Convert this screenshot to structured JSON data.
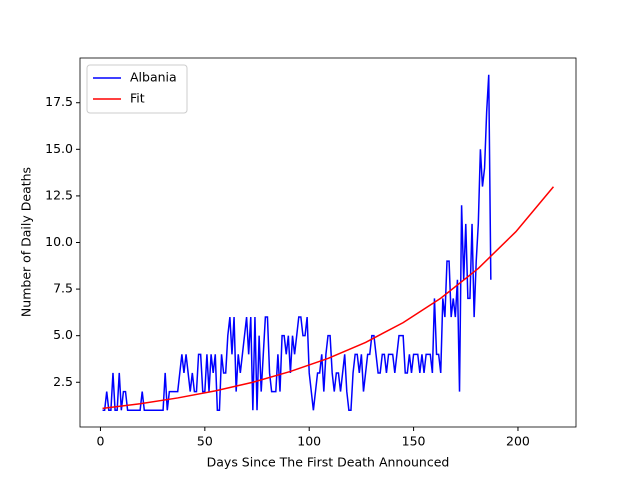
{
  "chart_data": {
    "type": "line",
    "xlabel": "Days Since The First Death Announced",
    "ylabel": "Number of Daily Deaths",
    "xlim": [
      -9.8,
      227.8
    ],
    "xticks": [
      0,
      50,
      100,
      150,
      200
    ],
    "ylim": [
      0.1,
      19.9
    ],
    "yticks": [
      2.5,
      {
        "value": 5,
        "label": "5.0"
      },
      7.5,
      {
        "value": 10,
        "label": "10.0"
      },
      12.5,
      {
        "value": 15,
        "label": "15.0"
      },
      17.5
    ],
    "legend": "upper left",
    "series": [
      {
        "name": "Albania",
        "color": "#0000ff",
        "x": [
          1,
          2,
          3,
          4,
          5,
          6,
          7,
          8,
          9,
          10,
          11,
          12,
          13,
          14,
          15,
          16,
          17,
          18,
          19,
          20,
          21,
          22,
          23,
          24,
          25,
          26,
          27,
          28,
          29,
          30,
          31,
          32,
          33,
          34,
          35,
          36,
          37,
          38,
          39,
          40,
          41,
          42,
          43,
          44,
          45,
          46,
          47,
          48,
          49,
          50,
          51,
          52,
          53,
          54,
          55,
          56,
          57,
          58,
          59,
          60,
          61,
          62,
          63,
          64,
          65,
          66,
          67,
          68,
          69,
          70,
          71,
          72,
          73,
          74,
          75,
          76,
          77,
          78,
          79,
          80,
          81,
          82,
          83,
          84,
          85,
          86,
          87,
          88,
          89,
          90,
          91,
          92,
          93,
          94,
          95,
          96,
          97,
          98,
          99,
          100,
          101,
          102,
          103,
          104,
          105,
          106,
          107,
          108,
          109,
          110,
          111,
          112,
          113,
          114,
          115,
          116,
          117,
          118,
          119,
          120,
          121,
          122,
          123,
          124,
          125,
          126,
          127,
          128,
          129,
          130,
          131,
          132,
          133,
          134,
          135,
          136,
          137,
          138,
          139,
          140,
          141,
          142,
          143,
          144,
          145,
          146,
          147,
          148,
          149,
          150,
          151,
          152,
          153,
          154,
          155,
          156,
          157,
          158,
          159,
          160,
          161,
          162,
          163,
          164,
          165,
          166,
          167,
          168,
          169,
          170,
          171,
          172,
          173,
          174,
          175,
          176,
          177,
          178,
          179,
          180,
          181,
          182,
          183,
          184,
          185,
          186,
          187
        ],
        "values": [
          1,
          1,
          2,
          1,
          1,
          3,
          1,
          1,
          3,
          1,
          2,
          2,
          1,
          1,
          1,
          1,
          1,
          1,
          1,
          2,
          1,
          1,
          1,
          1,
          1,
          1,
          1,
          1,
          1,
          1,
          3,
          1,
          2,
          2,
          2,
          2,
          2,
          3,
          4,
          3,
          4,
          3,
          2,
          3,
          2,
          2,
          4,
          4,
          2,
          2,
          4,
          2,
          4,
          3,
          4,
          1,
          1,
          4,
          3,
          3,
          5,
          6,
          4,
          6,
          2,
          4,
          3,
          4,
          5,
          6,
          4,
          6,
          1,
          6,
          1,
          5,
          2,
          4,
          6,
          6,
          3,
          2,
          2,
          2,
          4,
          2,
          5,
          5,
          4,
          5,
          3,
          5,
          4,
          5,
          6,
          6,
          5,
          5,
          6,
          3,
          2,
          1,
          2,
          3,
          3,
          4,
          2,
          4,
          5,
          5,
          3,
          2,
          3,
          3,
          2,
          3,
          4,
          2,
          1,
          1,
          3,
          4,
          4,
          3,
          4,
          2,
          3,
          4,
          4,
          5,
          5,
          4,
          3,
          3,
          4,
          4,
          3,
          4,
          4,
          4,
          3,
          4,
          5,
          5,
          5,
          3,
          3,
          4,
          3,
          4,
          4,
          4,
          3,
          4,
          3,
          4,
          4,
          4,
          3,
          7,
          4,
          4,
          3,
          7,
          6,
          9,
          9,
          6,
          7,
          6,
          8,
          2,
          12,
          8,
          11,
          7,
          7,
          11,
          6,
          9,
          11,
          15,
          13,
          14,
          17,
          19,
          8
        ]
      },
      {
        "name": "Fit",
        "color": "#ff0000",
        "x": [
          1,
          19,
          37,
          55,
          73,
          91,
          109,
          127,
          145,
          163,
          181,
          199,
          217
        ],
        "values": [
          1.1,
          1.35,
          1.66,
          2.04,
          2.5,
          3.08,
          3.78,
          4.64,
          5.7,
          7.01,
          8.61,
          10.58,
          12.99
        ]
      }
    ]
  }
}
